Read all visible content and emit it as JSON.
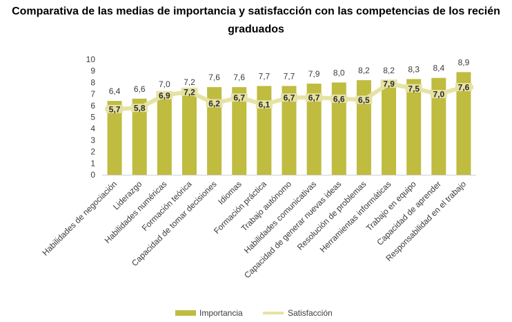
{
  "chart_data": {
    "type": "bar",
    "title": "Comparativa de las medias de importancia y satisfacción con las competencias de los recién graduados",
    "xlabel": "",
    "ylabel": "",
    "ylim": [
      0,
      10
    ],
    "yticks": [
      "0",
      "1",
      "2",
      "3",
      "4",
      "5",
      "6",
      "7",
      "8",
      "9",
      "10"
    ],
    "grid": false,
    "legend_position": "bottom",
    "categories": [
      "Habilidades de negociación",
      "Liderazgo",
      "Habilidades numéricas",
      "Formación teórica",
      "Capacidad de tomar decisiones",
      "Idiomas",
      "Formación práctica",
      "Trabajo autónomo",
      "Habilidades comunicativas",
      "Capacidad de generar nuevas ideas",
      "Resolución de problemas",
      "Herramientas informáticas",
      "Trabajo en equipo",
      "Capacidad de aprender",
      "Responsabilidad en el trabajo"
    ],
    "series": [
      {
        "name": "Importancia",
        "kind": "bar",
        "color": "#bfbc40",
        "values": [
          6.4,
          6.6,
          7.0,
          7.2,
          7.6,
          7.6,
          7.7,
          7.7,
          7.9,
          8.0,
          8.2,
          8.2,
          8.3,
          8.4,
          8.9
        ],
        "labels": [
          "6,4",
          "6,6",
          "7,0",
          "7,2",
          "7,6",
          "7,6",
          "7,7",
          "7,7",
          "7,9",
          "8,0",
          "8,2",
          "8,2",
          "8,3",
          "8,4",
          "8,9"
        ]
      },
      {
        "name": "Satisfacción",
        "kind": "line",
        "color": "#e6e2a3",
        "values": [
          5.7,
          5.8,
          6.9,
          7.2,
          6.2,
          6.7,
          6.1,
          6.7,
          6.7,
          6.6,
          6.5,
          7.9,
          7.5,
          7.0,
          7.6
        ],
        "labels": [
          "5,7",
          "5,8",
          "6,9",
          "7,2",
          "6,2",
          "6,7",
          "6,1",
          "6,7",
          "6,7",
          "6,6",
          "6,5",
          "7,9",
          "7,5",
          "7,0",
          "7,6"
        ]
      }
    ]
  }
}
